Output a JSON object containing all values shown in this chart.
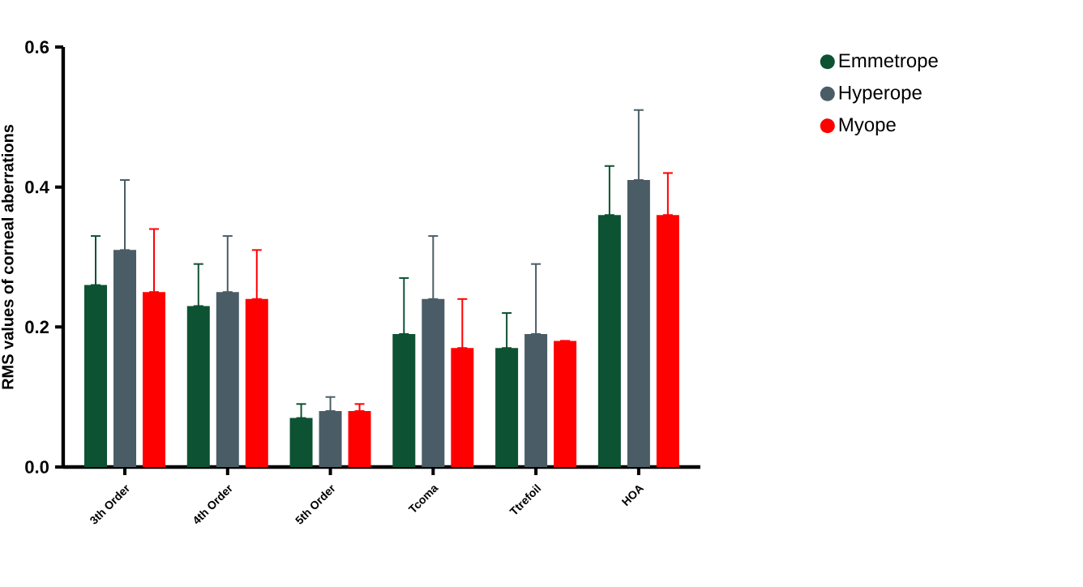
{
  "chart_data": {
    "type": "bar",
    "ylabel": "RMS values of corneal aberrations",
    "categories": [
      "3th Order",
      "4th Order",
      "5th Order",
      "Tcoma",
      "Ttrefoil",
      "HOA"
    ],
    "series": [
      {
        "name": "Emmetrope",
        "color": "#0d5232",
        "values": [
          0.26,
          0.23,
          0.07,
          0.19,
          0.17,
          0.36
        ],
        "errors": [
          [
            0.26,
            0.33
          ],
          [
            0.23,
            0.29
          ],
          [
            0.07,
            0.09
          ],
          [
            0.19,
            0.27
          ],
          [
            0.17,
            0.22
          ],
          [
            0.36,
            0.43
          ]
        ]
      },
      {
        "name": "Hyperope",
        "color": "#4a5d66",
        "values": [
          0.31,
          0.25,
          0.08,
          0.24,
          0.19,
          0.41
        ],
        "errors": [
          [
            0.31,
            0.41
          ],
          [
            0.25,
            0.33
          ],
          [
            0.08,
            0.1
          ],
          [
            0.24,
            0.33
          ],
          [
            0.19,
            0.29
          ],
          [
            0.41,
            0.51
          ]
        ]
      },
      {
        "name": "Myope",
        "color": "#ff0000",
        "values": [
          0.25,
          0.24,
          0.08,
          0.17,
          0.18,
          0.36
        ],
        "errors": [
          [
            0.25,
            0.34
          ],
          [
            0.24,
            0.31
          ],
          [
            0.08,
            0.09
          ],
          [
            0.17,
            0.24
          ],
          null,
          [
            0.36,
            0.42
          ]
        ]
      }
    ],
    "ylim": [
      0,
      0.6
    ],
    "yticks": [
      {
        "value": 0,
        "label": "0.0"
      },
      {
        "value": 0.2,
        "label": "0.2"
      },
      {
        "value": 0.4,
        "label": "0.4"
      },
      {
        "value": 0.6,
        "label": "0.6"
      }
    ],
    "grid": false,
    "legend": "top right",
    "marker": "circle"
  }
}
